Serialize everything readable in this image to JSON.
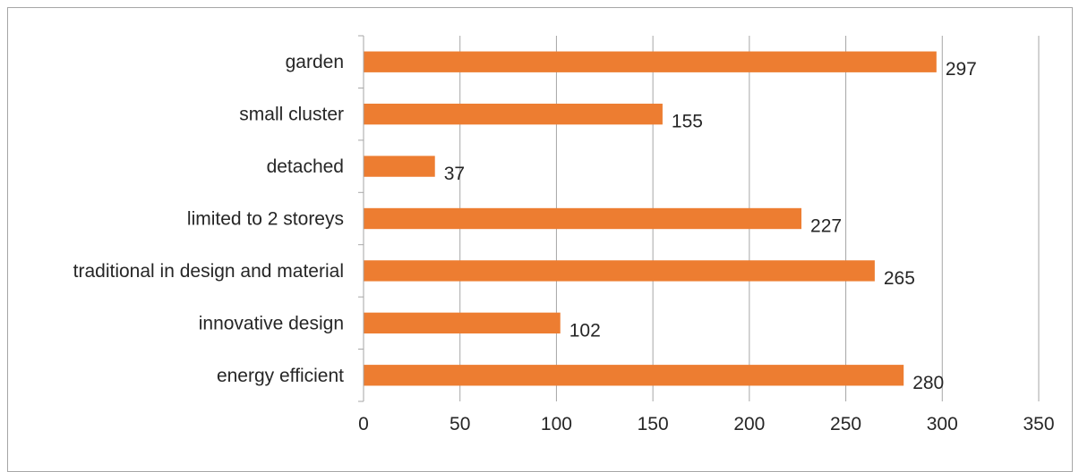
{
  "chart_data": {
    "type": "bar",
    "orientation": "horizontal",
    "title": "",
    "xlabel": "",
    "ylabel": "",
    "categories": [
      "garden",
      "small cluster",
      "detached",
      "limited to 2 storeys",
      "traditional in design and material",
      "innovative design",
      "energy efficient"
    ],
    "values": [
      297,
      155,
      37,
      227,
      265,
      102,
      280
    ],
    "xlim": [
      0,
      350
    ],
    "xticks": [
      0,
      50,
      100,
      150,
      200,
      250,
      300,
      350
    ],
    "grid": "vertical",
    "legend": "none",
    "data_labels": true,
    "bar_color": "#ed7d31",
    "grid_color": "#a6a6a6"
  }
}
